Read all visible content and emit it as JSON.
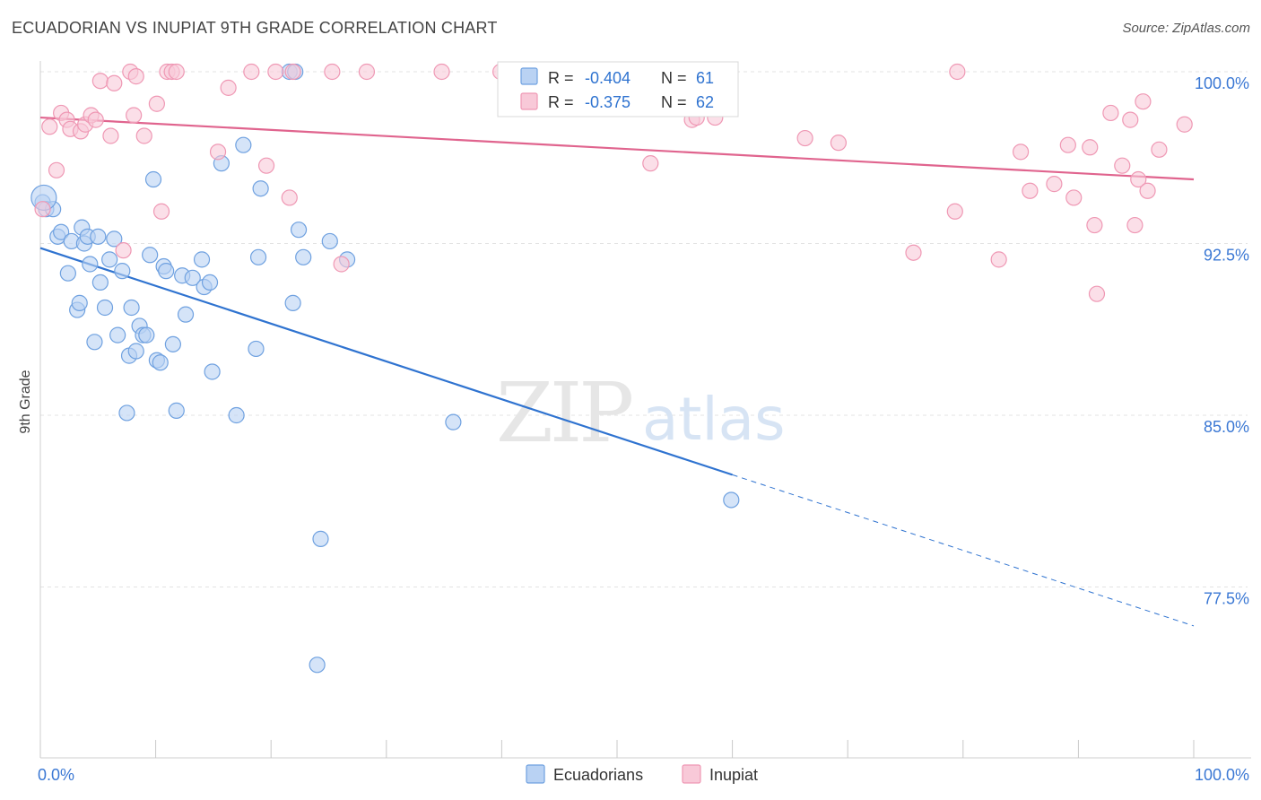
{
  "title": "ECUADORIAN VS INUPIAT 9TH GRADE CORRELATION CHART",
  "source": "Source: ZipAtlas.com",
  "watermark": {
    "zip": "ZIP",
    "atlas": "atlas"
  },
  "chart_data": {
    "type": "scatter",
    "xlabel": "",
    "ylabel": "9th Grade",
    "xlim": [
      0,
      100
    ],
    "ylim": [
      70.0,
      100.5
    ],
    "x_tick_labels": [
      {
        "value": 0,
        "label": "0.0%"
      },
      {
        "value": 100,
        "label": "100.0%"
      }
    ],
    "y_tick_labels": [
      {
        "value": 100.0,
        "label": "100.0%"
      },
      {
        "value": 92.5,
        "label": "92.5%"
      },
      {
        "value": 85.0,
        "label": "85.0%"
      },
      {
        "value": 77.5,
        "label": "77.5%"
      }
    ],
    "grid": true,
    "legend": {
      "position": "top-center-left",
      "bottom_position": "bottom-center"
    },
    "series": [
      {
        "name": "Ecuadorians",
        "color": "#6fa1e0",
        "fill": "#b9d2f3",
        "line_color": "#2f73d0",
        "R": "-0.404",
        "N": "61",
        "trend": {
          "x0": 0,
          "y0": 92.3,
          "x_solid_end": 60,
          "x1": 100,
          "y1": 75.8
        },
        "points": [
          [
            0.2,
            94.3
          ],
          [
            0.5,
            94.0
          ],
          [
            1.1,
            94.0
          ],
          [
            1.5,
            92.8
          ],
          [
            1.8,
            93.0
          ],
          [
            2.4,
            91.2
          ],
          [
            2.7,
            92.6
          ],
          [
            3.2,
            89.6
          ],
          [
            3.4,
            89.9
          ],
          [
            3.6,
            93.2
          ],
          [
            3.8,
            92.5
          ],
          [
            4.1,
            92.8
          ],
          [
            4.3,
            91.6
          ],
          [
            4.7,
            88.2
          ],
          [
            5.0,
            92.8
          ],
          [
            5.2,
            90.8
          ],
          [
            5.6,
            89.7
          ],
          [
            6.0,
            91.8
          ],
          [
            6.4,
            92.7
          ],
          [
            6.7,
            88.5
          ],
          [
            7.1,
            91.3
          ],
          [
            7.5,
            85.1
          ],
          [
            7.7,
            87.6
          ],
          [
            7.9,
            89.7
          ],
          [
            8.3,
            87.8
          ],
          [
            8.6,
            88.9
          ],
          [
            8.9,
            88.5
          ],
          [
            9.2,
            88.5
          ],
          [
            9.5,
            92.0
          ],
          [
            9.8,
            95.3
          ],
          [
            10.1,
            87.4
          ],
          [
            10.4,
            87.3
          ],
          [
            10.7,
            91.5
          ],
          [
            10.9,
            91.3
          ],
          [
            11.5,
            88.1
          ],
          [
            11.8,
            85.2
          ],
          [
            12.3,
            91.1
          ],
          [
            12.6,
            89.4
          ],
          [
            13.2,
            91.0
          ],
          [
            14.0,
            91.8
          ],
          [
            14.2,
            90.6
          ],
          [
            14.9,
            86.9
          ],
          [
            14.7,
            90.8
          ],
          [
            15.7,
            96.0
          ],
          [
            17.0,
            85.0
          ],
          [
            17.6,
            96.8
          ],
          [
            18.7,
            87.9
          ],
          [
            19.1,
            94.9
          ],
          [
            21.6,
            100.0
          ],
          [
            21.9,
            89.9
          ],
          [
            22.8,
            91.9
          ],
          [
            22.4,
            93.1
          ],
          [
            24.0,
            74.1
          ],
          [
            24.3,
            79.6
          ],
          [
            25.1,
            92.6
          ],
          [
            26.6,
            91.8
          ],
          [
            35.8,
            84.7
          ],
          [
            59.9,
            81.3
          ],
          [
            22.1,
            100.0
          ],
          [
            0.3,
            94.5
          ],
          [
            18.9,
            91.9
          ]
        ]
      },
      {
        "name": "Inupiat",
        "color": "#ef98b4",
        "fill": "#f8c9d8",
        "line_color": "#e0648e",
        "R": "-0.375",
        "N": "62",
        "trend": {
          "x0": 0,
          "y0": 98.0,
          "x_solid_end": 100,
          "x1": 100,
          "y1": 95.3
        },
        "points": [
          [
            0.2,
            94.0
          ],
          [
            0.8,
            97.6
          ],
          [
            1.4,
            95.7
          ],
          [
            1.8,
            98.2
          ],
          [
            2.3,
            97.9
          ],
          [
            2.6,
            97.5
          ],
          [
            3.5,
            97.4
          ],
          [
            3.9,
            97.7
          ],
          [
            4.4,
            98.1
          ],
          [
            4.8,
            97.9
          ],
          [
            5.2,
            99.6
          ],
          [
            6.1,
            97.2
          ],
          [
            6.4,
            99.5
          ],
          [
            7.2,
            92.2
          ],
          [
            7.8,
            100.0
          ],
          [
            8.1,
            98.1
          ],
          [
            8.3,
            99.8
          ],
          [
            9.0,
            97.2
          ],
          [
            10.1,
            98.6
          ],
          [
            10.5,
            93.9
          ],
          [
            11.0,
            100.0
          ],
          [
            11.4,
            100.0
          ],
          [
            11.8,
            100.0
          ],
          [
            16.3,
            99.3
          ],
          [
            15.4,
            96.5
          ],
          [
            18.3,
            100.0
          ],
          [
            19.6,
            95.9
          ],
          [
            20.4,
            100.0
          ],
          [
            21.6,
            94.5
          ],
          [
            21.9,
            100.0
          ],
          [
            25.3,
            100.0
          ],
          [
            26.1,
            91.6
          ],
          [
            28.3,
            100.0
          ],
          [
            34.8,
            100.0
          ],
          [
            39.9,
            100.0
          ],
          [
            52.9,
            96.0
          ],
          [
            56.5,
            97.9
          ],
          [
            56.9,
            98.0
          ],
          [
            58.5,
            98.0
          ],
          [
            66.3,
            97.1
          ],
          [
            69.2,
            96.9
          ],
          [
            75.7,
            92.1
          ],
          [
            79.5,
            100.0
          ],
          [
            79.3,
            93.9
          ],
          [
            83.1,
            91.8
          ],
          [
            85.0,
            96.5
          ],
          [
            85.8,
            94.8
          ],
          [
            87.9,
            95.1
          ],
          [
            89.1,
            96.8
          ],
          [
            89.6,
            94.5
          ],
          [
            91.0,
            96.7
          ],
          [
            91.4,
            93.3
          ],
          [
            91.6,
            90.3
          ],
          [
            92.8,
            98.2
          ],
          [
            93.8,
            95.9
          ],
          [
            94.5,
            97.9
          ],
          [
            94.9,
            93.3
          ],
          [
            95.2,
            95.3
          ],
          [
            95.6,
            98.7
          ],
          [
            96.0,
            94.8
          ],
          [
            97.0,
            96.6
          ],
          [
            99.2,
            97.7
          ]
        ]
      }
    ]
  }
}
